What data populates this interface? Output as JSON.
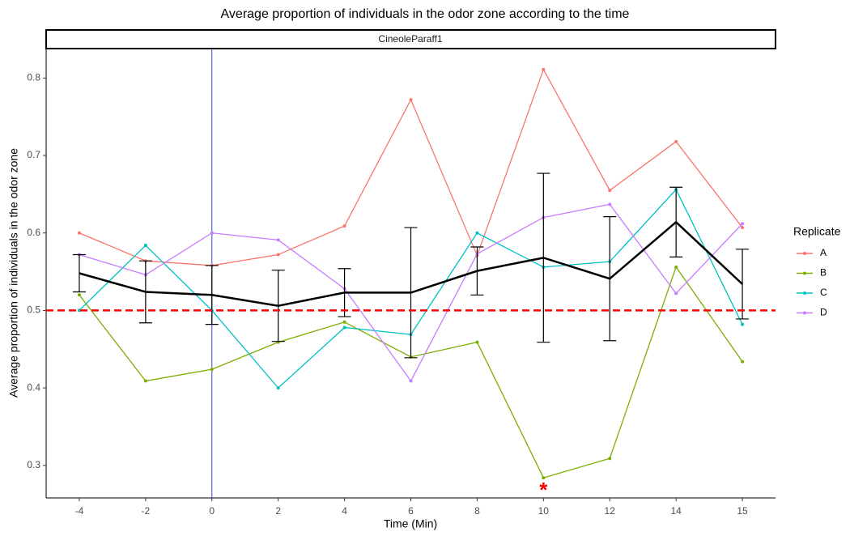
{
  "chart_data": {
    "type": "line",
    "title": "Average proportion of individuals in the odor zone according to the time",
    "facet_label": "CineoleParaff1",
    "x_label": "Time (Min)",
    "y_label": "Average proportion of individuals in the odor zone",
    "categories": [
      "-4",
      "-2",
      "0",
      "2",
      "4",
      "6",
      "8",
      "10",
      "12",
      "14",
      "15"
    ],
    "ylim": [
      0.258,
      0.838
    ],
    "yticks": [
      0.3,
      0.4,
      0.5,
      0.6,
      0.7,
      0.8
    ],
    "legend_title": "Replicate",
    "legend_position": "right",
    "series": [
      {
        "name": "A",
        "color": "#F8766D",
        "values": [
          0.6,
          0.564,
          0.558,
          0.572,
          0.609,
          0.772,
          0.571,
          0.811,
          0.655,
          0.718,
          0.607
        ]
      },
      {
        "name": "B",
        "color": "#7CAE00",
        "values": [
          0.52,
          0.409,
          0.424,
          0.459,
          0.485,
          0.44,
          0.459,
          0.284,
          0.309,
          0.556,
          0.434
        ]
      },
      {
        "name": "C",
        "color": "#00BFC4",
        "values": [
          0.5,
          0.584,
          0.5,
          0.4,
          0.478,
          0.469,
          0.6,
          0.556,
          0.563,
          0.656,
          0.482
        ]
      },
      {
        "name": "D",
        "color": "#C77CFF",
        "values": [
          0.572,
          0.546,
          0.6,
          0.591,
          0.528,
          0.409,
          0.573,
          0.62,
          0.637,
          0.522,
          0.612
        ]
      }
    ],
    "mean": {
      "color": "#000000",
      "values": [
        0.548,
        0.524,
        0.52,
        0.506,
        0.523,
        0.523,
        0.551,
        0.568,
        0.541,
        0.614,
        0.534
      ],
      "errors": [
        0.024,
        0.04,
        0.038,
        0.046,
        0.031,
        0.084,
        0.031,
        0.109,
        0.08,
        0.045,
        0.045
      ]
    },
    "hline": {
      "value": 0.5,
      "color": "#FF0000"
    },
    "vline": {
      "category": "0",
      "color": "#3344DD"
    },
    "annotation": {
      "text": "*",
      "category": "10",
      "color": "#FF0000"
    }
  }
}
